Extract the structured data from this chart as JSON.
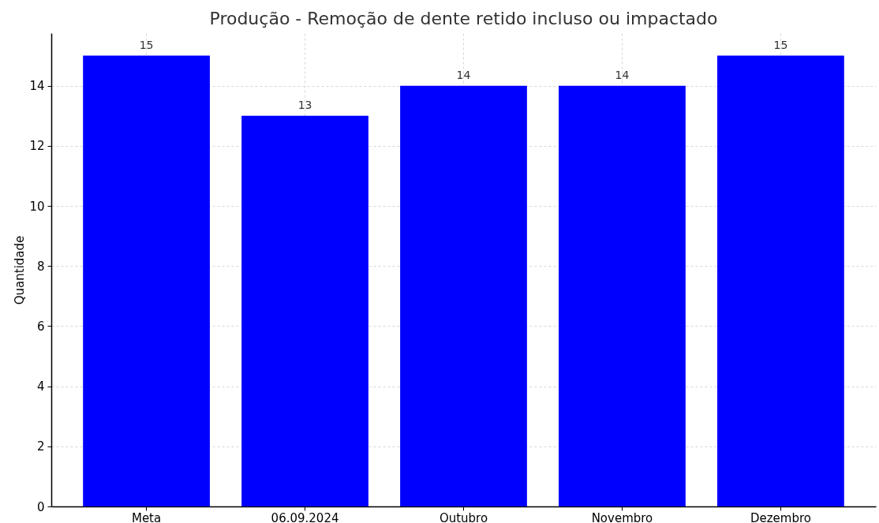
{
  "chart_data": {
    "type": "bar",
    "title": "Produção - Remoção de dente retido incluso ou impactado",
    "ylabel": "Quantidade",
    "categories": [
      "Meta",
      "06.09.2024",
      "Outubro",
      "Novembro",
      "Dezembro"
    ],
    "values": [
      15,
      13,
      14,
      14,
      15
    ],
    "color": "#0000ff",
    "ylim": [
      0,
      15.75
    ],
    "yticks": [
      0,
      2,
      4,
      6,
      8,
      10,
      12,
      14
    ],
    "grid": true,
    "data_labels": true
  }
}
